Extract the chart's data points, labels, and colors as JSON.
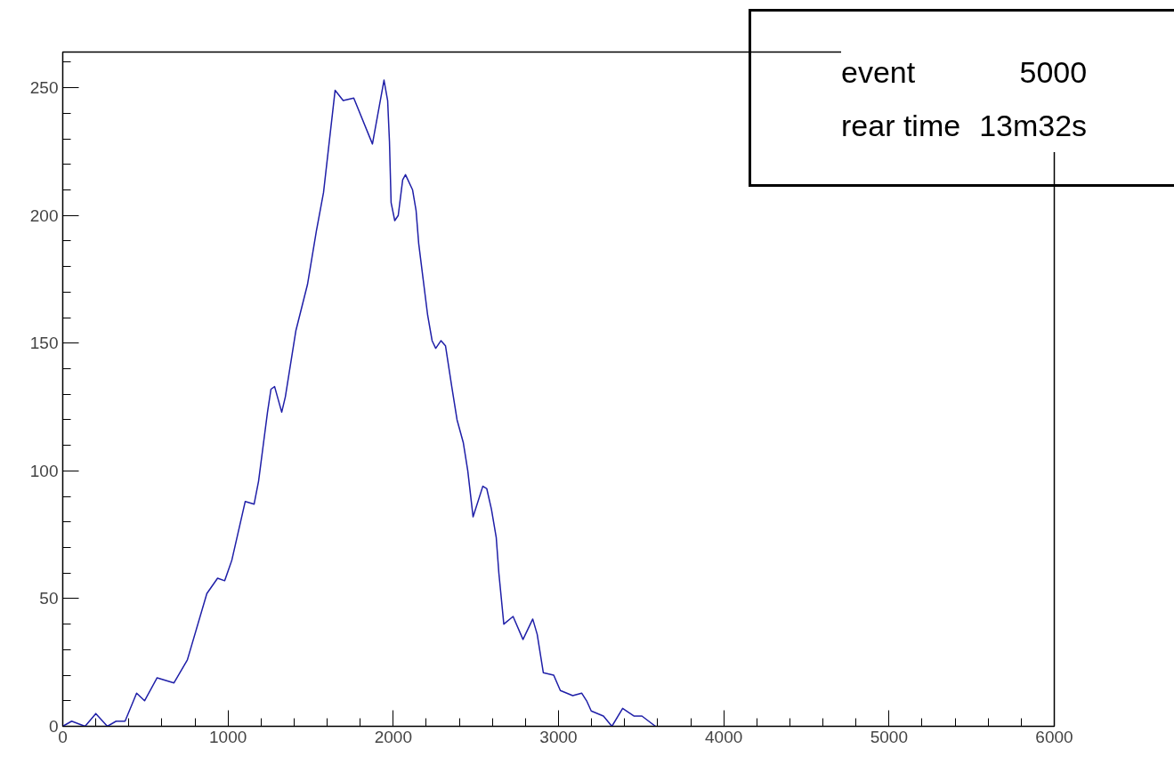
{
  "chart_data": {
    "type": "line",
    "x": [
      0,
      54,
      135,
      200,
      270,
      323,
      377,
      447,
      495,
      571,
      673,
      754,
      872,
      937,
      980,
      1023,
      1104,
      1158,
      1185,
      1239,
      1260,
      1282,
      1325,
      1347,
      1411,
      1481,
      1535,
      1578,
      1648,
      1697,
      1761,
      1874,
      1944,
      1966,
      1977,
      1987,
      2009,
      2030,
      2057,
      2074,
      2117,
      2138,
      2154,
      2181,
      2208,
      2235,
      2257,
      2289,
      2316,
      2354,
      2386,
      2424,
      2451,
      2483,
      2542,
      2566,
      2594,
      2623,
      2639,
      2669,
      2725,
      2785,
      2844,
      2871,
      2908,
      2971,
      3011,
      3086,
      3140,
      3170,
      3198,
      3272,
      3323,
      3388,
      3458,
      3505,
      3587
    ],
    "series": [
      {
        "color": "#1f1fa8",
        "values": [
          0,
          2,
          0,
          5,
          0,
          2,
          2,
          13,
          10,
          19,
          17,
          26,
          52,
          58,
          57,
          65,
          88,
          87,
          96,
          123,
          132,
          133,
          123,
          129,
          155,
          173,
          194,
          209,
          249,
          245,
          246,
          228,
          253,
          245,
          229,
          205,
          198,
          200,
          214,
          216,
          210,
          202,
          189,
          175,
          161,
          151,
          148,
          151,
          149,
          133,
          120,
          111,
          100,
          82,
          94,
          93,
          85,
          74,
          60,
          40,
          43,
          34,
          42,
          36,
          21,
          20,
          14,
          12,
          13,
          10,
          6,
          4,
          0,
          7,
          4,
          4,
          0
        ]
      }
    ],
    "xlim": [
      0,
      6000
    ],
    "ylim": [
      0,
      264
    ],
    "xticks": [
      0,
      {
        "value": 200,
        "label": null
      },
      {
        "value": 400,
        "label": null
      },
      {
        "value": 600,
        "label": null
      },
      {
        "value": 800,
        "label": null
      },
      1000,
      {
        "value": 1200,
        "label": null
      },
      {
        "value": 1400,
        "label": null
      },
      {
        "value": 1600,
        "label": null
      },
      {
        "value": 1800,
        "label": null
      },
      2000,
      {
        "value": 2200,
        "label": null
      },
      {
        "value": 2400,
        "label": null
      },
      {
        "value": 2600,
        "label": null
      },
      {
        "value": 2800,
        "label": null
      },
      3000,
      {
        "value": 3200,
        "label": null
      },
      {
        "value": 3400,
        "label": null
      },
      {
        "value": 3600,
        "label": null
      },
      {
        "value": 3800,
        "label": null
      },
      4000,
      {
        "value": 4200,
        "label": null
      },
      {
        "value": 4400,
        "label": null
      },
      {
        "value": 4600,
        "label": null
      },
      {
        "value": 4800,
        "label": null
      },
      5000,
      {
        "value": 5200,
        "label": null
      },
      {
        "value": 5400,
        "label": null
      },
      {
        "value": 5600,
        "label": null
      },
      {
        "value": 5800,
        "label": null
      },
      6000
    ],
    "yticks": [
      0,
      {
        "value": 10,
        "label": null
      },
      {
        "value": 20,
        "label": null
      },
      {
        "value": 30,
        "label": null
      },
      {
        "value": 40,
        "label": null
      },
      50,
      {
        "value": 60,
        "label": null
      },
      {
        "value": 70,
        "label": null
      },
      {
        "value": 80,
        "label": null
      },
      {
        "value": 90,
        "label": null
      },
      100,
      {
        "value": 110,
        "label": null
      },
      {
        "value": 120,
        "label": null
      },
      {
        "value": 130,
        "label": null
      },
      {
        "value": 140,
        "label": null
      },
      150,
      {
        "value": 160,
        "label": null
      },
      {
        "value": 170,
        "label": null
      },
      {
        "value": 180,
        "label": null
      },
      {
        "value": 190,
        "label": null
      },
      200,
      {
        "value": 210,
        "label": null
      },
      {
        "value": 220,
        "label": null
      },
      {
        "value": 230,
        "label": null
      },
      {
        "value": 240,
        "label": null
      },
      250,
      {
        "value": 260,
        "label": null
      }
    ],
    "annotations": [
      "event",
      "5000",
      "rear time",
      "13m32s"
    ]
  }
}
